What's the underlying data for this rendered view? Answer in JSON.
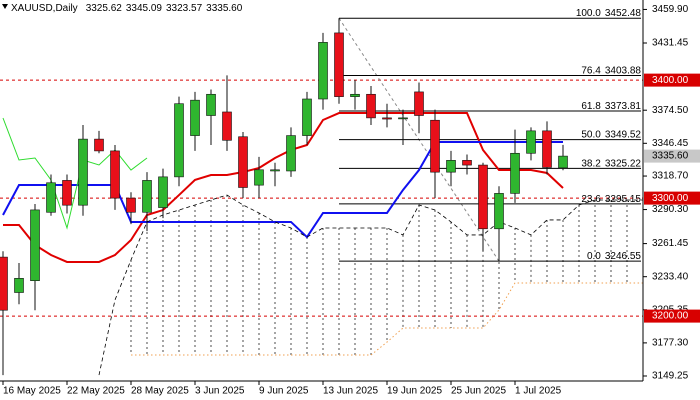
{
  "chart_data": {
    "type": "candlestick",
    "title": "XAUUSD,Daily",
    "categories": [
      "16 May 2025",
      null,
      null,
      null,
      "22 May 2025",
      null,
      null,
      null,
      "28 May 2025",
      null,
      null,
      null,
      "3 Jun 2025",
      null,
      null,
      null,
      "9 Jun 2025",
      null,
      null,
      null,
      "13 Jun 2025",
      null,
      null,
      null,
      "19 Jun 2025",
      null,
      null,
      null,
      "25 Jun 2025",
      null,
      null,
      null,
      "1 Jul 2025",
      null,
      null,
      null,
      null,
      null,
      null,
      null,
      null
    ],
    "open": [
      3250,
      3220,
      3230,
      3288,
      3315,
      3294,
      3350,
      3340,
      3300,
      3288,
      3292,
      3318,
      3353,
      3370,
      3373,
      3352,
      3311,
      3323,
      3323,
      3353,
      3384,
      3440,
      3386,
      3388,
      3368,
      3368,
      3390,
      3366,
      3322,
      3332,
      3328,
      3274,
      3304,
      3338,
      3357,
      3325.62,
      null,
      null,
      null,
      null,
      null
    ],
    "high": [
      3255,
      3245,
      3295,
      3320,
      3320,
      3362,
      3357,
      3345,
      3305,
      3322,
      3325,
      3386,
      3390,
      3392,
      3404,
      3356,
      3335,
      3330,
      3360,
      3390,
      3440,
      3452.48,
      3400,
      3395,
      3380,
      3375,
      3398,
      3375,
      3340,
      3337,
      3330,
      3310,
      3358,
      3360,
      3365,
      3345.09,
      null,
      null,
      null,
      null,
      null
    ],
    "low": [
      3150,
      3210,
      3205,
      3285,
      3287,
      3285,
      3338,
      3290,
      3278,
      3272,
      3283,
      3310,
      3340,
      3345,
      3340,
      3300,
      3300,
      3310,
      3318,
      3345,
      3375,
      3380,
      3375,
      3362,
      3360,
      3345,
      3355,
      3300,
      3310,
      3320,
      3255,
      3246.55,
      3296,
      3332,
      3320,
      3323.57,
      null,
      null,
      null,
      null,
      null
    ],
    "close": [
      3205,
      3232,
      3290,
      3313,
      3294,
      3350,
      3340,
      3300,
      3288,
      3315,
      3318,
      3380,
      3383,
      3388,
      3349,
      3309,
      3324,
      3324,
      3353,
      3384,
      3432,
      3386,
      3388,
      3368,
      3367,
      3368,
      3370,
      3322,
      3332,
      3328,
      3274,
      3304,
      3338,
      3357,
      3326,
      3335.6,
      null,
      null,
      null,
      null,
      null
    ],
    "up_color": "#2fb52f",
    "down_color": "#e8101a",
    "indicators": [
      {
        "color": "#e00000",
        "style": "solid",
        "width": 2,
        "values": [
          3277.2,
          3277.2,
          3260.3,
          3251.8,
          3245.9,
          3245.9,
          3245.9,
          3251.8,
          3264.5,
          3285.7,
          3289.9,
          3302.6,
          3315.4,
          3319.6,
          3319.6,
          3322.1,
          3325.5,
          3334.0,
          3340.8,
          3345.0,
          3366.2,
          3372.1,
          3372.1,
          3372.1,
          3372.1,
          3372.1,
          3372.1,
          3372.1,
          3372.1,
          3372.1,
          3340.8,
          3323.8,
          3323.8,
          3323.8,
          3321.3,
          3308.6,
          null,
          null,
          null,
          null,
          null
        ]
      },
      {
        "color": "#1010f0",
        "style": "solid",
        "width": 2,
        "values": [
          3285.7,
          3311.1,
          3311.1,
          3311.1,
          3311.1,
          3311.1,
          3311.1,
          3311.1,
          3279.8,
          3279.8,
          3279.8,
          3279.8,
          3279.8,
          3279.8,
          3279.8,
          3279.8,
          3279.8,
          3279.8,
          3279.8,
          3267.0,
          3287.4,
          3287.4,
          3287.4,
          3287.4,
          3287.4,
          3306.9,
          3323.8,
          3347.6,
          3347.6,
          3347.6,
          3347.6,
          3347.6,
          3347.6,
          3347.6,
          3347.6,
          3347.6,
          null,
          null,
          null,
          null,
          null
        ]
      },
      {
        "color": "#2edc2e",
        "style": "solid",
        "width": 1,
        "values": [
          3367.9,
          3332.3,
          3334.0,
          3315.4,
          3274.7,
          3332.3,
          3328.1,
          3340.8,
          3323.8,
          3334.0,
          null,
          null,
          null,
          null,
          null,
          null,
          null,
          null,
          null,
          null,
          null,
          null,
          null,
          null,
          null,
          null,
          null,
          null,
          null,
          null,
          null,
          null,
          null,
          null,
          null,
          null,
          null,
          null,
          null,
          null,
          null
        ]
      },
      {
        "color": "#000000",
        "style": "dashed",
        "width": 0.8,
        "values": [
          null,
          null,
          null,
          null,
          null,
          null,
          3150.0,
          3213.7,
          3247.6,
          3279.8,
          3285.7,
          3289.9,
          3294.2,
          3298.4,
          3302.6,
          3294.2,
          3287.4,
          3279.8,
          3274.7,
          3267.0,
          3274.7,
          3274.7,
          3274.7,
          3274.7,
          3274.7,
          3268.8,
          3294.2,
          3289.9,
          3279.8,
          3268.8,
          3268.8,
          3279.8,
          3274.7,
          3268.8,
          3281.5,
          3281.5,
          3294.2,
          3298.4,
          3298.4,
          3298.4,
          3298.4
        ]
      },
      {
        "color": "#f0a050",
        "style": "dotted",
        "width": 1,
        "values": [
          null,
          null,
          null,
          null,
          null,
          null,
          null,
          null,
          3167.0,
          3167.0,
          3167.0,
          3167.0,
          3167.0,
          3167.0,
          3167.0,
          3167.0,
          3167.0,
          3167.0,
          3167.0,
          3167.0,
          3167.0,
          3167.0,
          3167.0,
          3167.0,
          3178.0,
          3189.9,
          3189.9,
          3189.9,
          3189.9,
          3189.9,
          3189.9,
          3205.2,
          3228.1,
          3228.1,
          3228.1,
          3228.1,
          3228.1,
          3228.1,
          3228.1,
          3228.1,
          3228.1
        ]
      }
    ],
    "fib_levels": [
      {
        "level": {
          "value": 100,
          "label": "100.0"
        },
        "price": 3452.48
      },
      {
        "level": 76.4,
        "price": 3403.88
      },
      {
        "level": 61.8,
        "price": 3373.81
      },
      {
        "level": {
          "value": 50,
          "label": "50.0"
        },
        "price": 3349.52
      },
      {
        "level": 38.2,
        "price": 3325.22
      },
      {
        "level": 23.6,
        "price": 3295.15
      },
      {
        "level": {
          "value": 0,
          "label": "0.0"
        },
        "price": 3246.55
      }
    ],
    "horizontal_lines": [
      {
        "value": 3400,
        "label": "3400.00"
      },
      {
        "value": 3300,
        "label": "3300.00"
      },
      {
        "value": 3200,
        "label": "3200.00"
      }
    ],
    "horizontal_line_color": "#d80000",
    "price_label": {
      "value": 3335.6,
      "label": "3335.60"
    },
    "ylim": [
      3145.0,
      3467.9
    ],
    "yticks": [
      {
        "value": 3459.9,
        "label": "3459.90"
      },
      3431.45,
      {
        "value": 3374.5,
        "label": "3374.50"
      },
      3346.45,
      {
        "value": 3318.7,
        "label": "3318.70"
      },
      {
        "value": 3290.3,
        "label": "3290.30"
      },
      3261.45,
      {
        "value": 3233.4,
        "label": "3233.40"
      },
      3205.35,
      {
        "value": 3177.3,
        "label": "3177.30"
      },
      3149.25
    ]
  }
}
